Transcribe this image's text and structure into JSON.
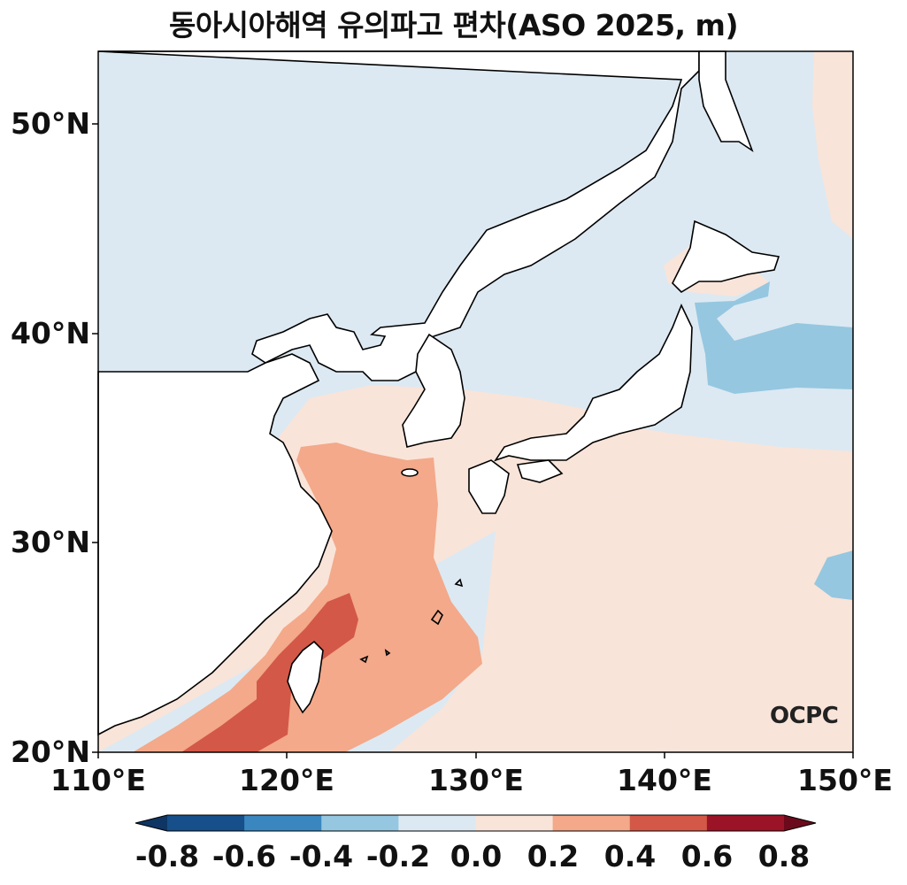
{
  "title": "동아시아해역 유의파고 편차(ASO 2025, m)",
  "map": {
    "lon_range": [
      110,
      150
    ],
    "lat_range": [
      20,
      53.5
    ],
    "coastlines": true,
    "land_color": "#ffffff"
  },
  "axes": {
    "lat_ticks": [
      {
        "value": 50,
        "label": "50°N"
      },
      {
        "value": 40,
        "label": "40°N"
      },
      {
        "value": 30,
        "label": "30°N"
      },
      {
        "value": 20,
        "label": "20°N"
      }
    ],
    "lon_ticks": [
      {
        "value": 110,
        "label": "110°E"
      },
      {
        "value": 120,
        "label": "120°E"
      },
      {
        "value": 130,
        "label": "130°E"
      },
      {
        "value": 140,
        "label": "140°E"
      },
      {
        "value": 150,
        "label": "150°E"
      }
    ]
  },
  "colorbar": {
    "levels": [
      "-0.8",
      "-0.6",
      "-0.4",
      "-0.2",
      "0.0",
      "0.2",
      "0.4",
      "0.6",
      "0.8"
    ],
    "colors": [
      "#164f8a",
      "#3a87c0",
      "#95c7e0",
      "#dce9f2",
      "#f9e4d9",
      "#f3a98a",
      "#d35848",
      "#9b1326"
    ],
    "extend_colors": [
      "#0e3563",
      "#6b0a1c"
    ]
  },
  "logo": "OCPC"
}
